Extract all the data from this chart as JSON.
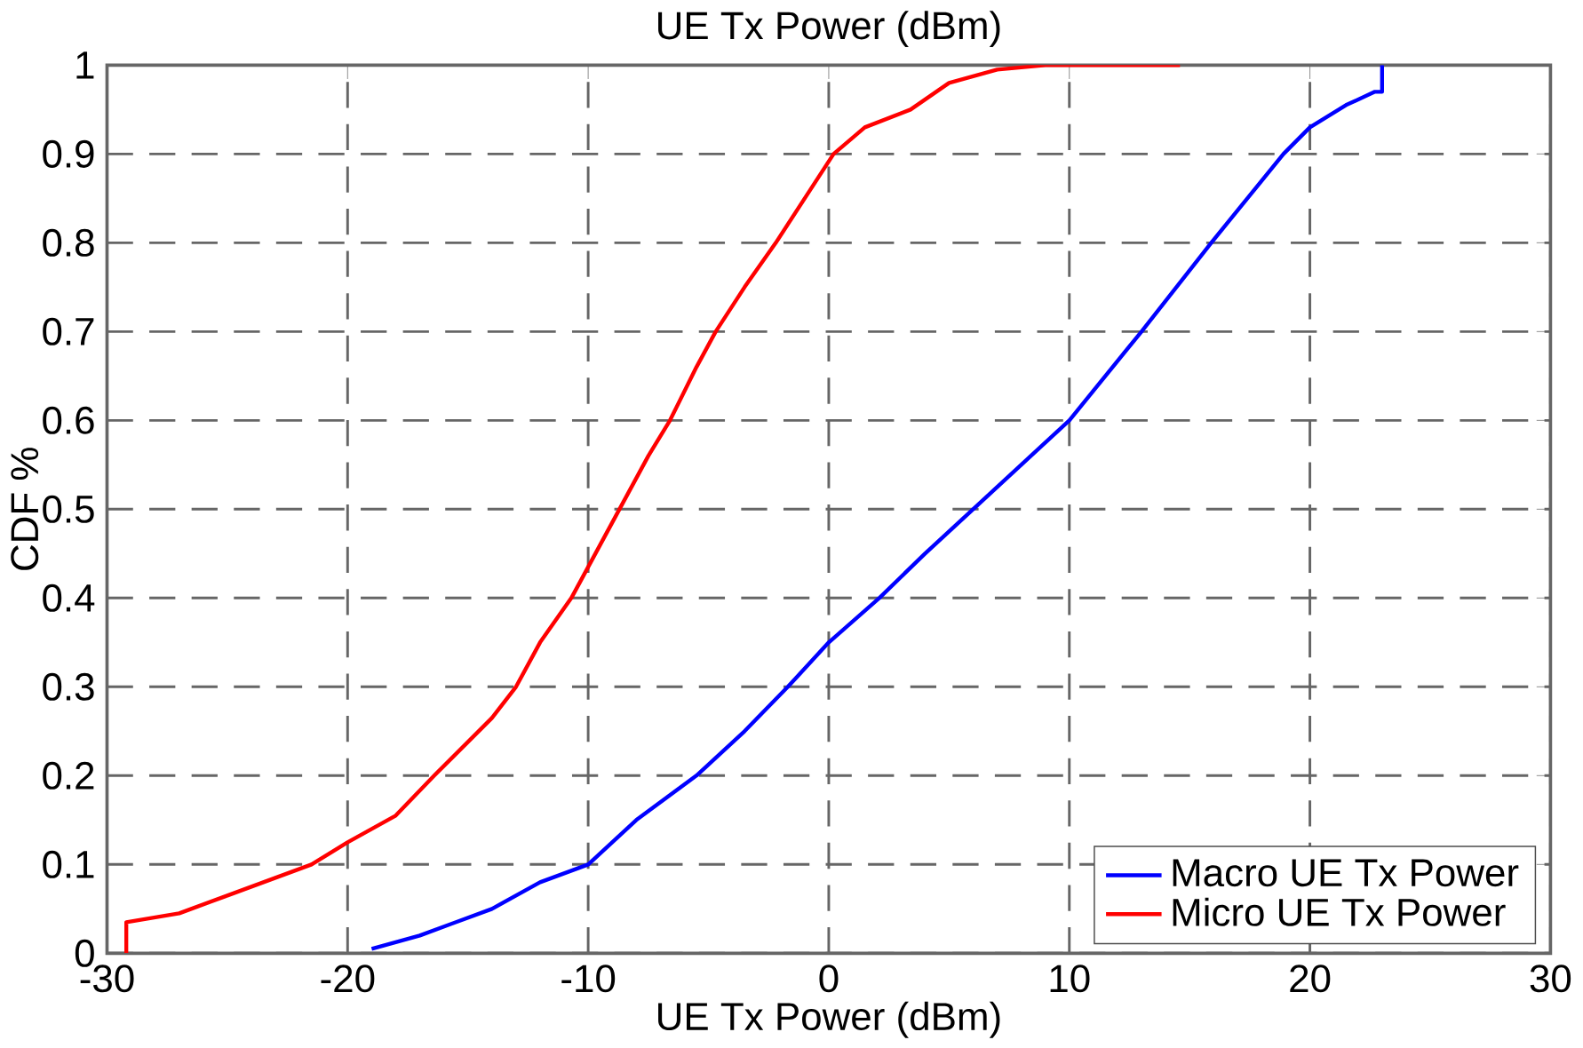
{
  "chart_data": {
    "type": "line",
    "title": "UE Tx Power (dBm)",
    "xlabel": "UE Tx Power (dBm)",
    "ylabel": "CDF %",
    "xlim": [
      -30,
      30
    ],
    "ylim": [
      0,
      1
    ],
    "xticks": [
      -30,
      -20,
      -10,
      0,
      10,
      20,
      30
    ],
    "yticks": [
      0,
      0.1,
      0.2,
      0.3,
      0.4,
      0.5,
      0.6,
      0.7,
      0.8,
      0.9,
      1
    ],
    "grid": true,
    "legend": "bottom right",
    "line_style": "solid",
    "marker": "none",
    "series": [
      {
        "name": "Macro UE Tx Power",
        "color": "#0000ff",
        "x": [
          -19,
          -17,
          -14,
          -12,
          -10,
          -8,
          -5.5,
          -3.5,
          -1.7,
          0,
          2.1,
          4,
          6,
          8,
          10,
          13,
          15.9,
          18.9,
          20,
          21.5,
          22.7,
          23,
          23
        ],
        "values": [
          0.005,
          0.02,
          0.05,
          0.08,
          0.1,
          0.15,
          0.2,
          0.25,
          0.3,
          0.35,
          0.4,
          0.45,
          0.5,
          0.55,
          0.6,
          0.7,
          0.8,
          0.9,
          0.93,
          0.955,
          0.97,
          0.97,
          1
        ]
      },
      {
        "name": "Micro UE Tx Power",
        "color": "#ff0000",
        "x": [
          -29.2,
          -29.2,
          -27,
          -25,
          -23,
          -21.5,
          -20,
          -18,
          -16.4,
          -14,
          -13,
          -12,
          -10.7,
          -9.5,
          -8.7,
          -7.5,
          -6.6,
          -5.5,
          -4.7,
          -3.5,
          -2.2,
          -1,
          0.2,
          1.5,
          3.4,
          5,
          7,
          9,
          14.6
        ],
        "values": [
          0,
          0.035,
          0.045,
          0.065,
          0.085,
          0.1,
          0.125,
          0.155,
          0.2,
          0.265,
          0.3,
          0.35,
          0.4,
          0.46,
          0.5,
          0.56,
          0.6,
          0.66,
          0.7,
          0.75,
          0.8,
          0.85,
          0.9,
          0.93,
          0.95,
          0.98,
          0.995,
          1,
          1
        ]
      }
    ]
  }
}
